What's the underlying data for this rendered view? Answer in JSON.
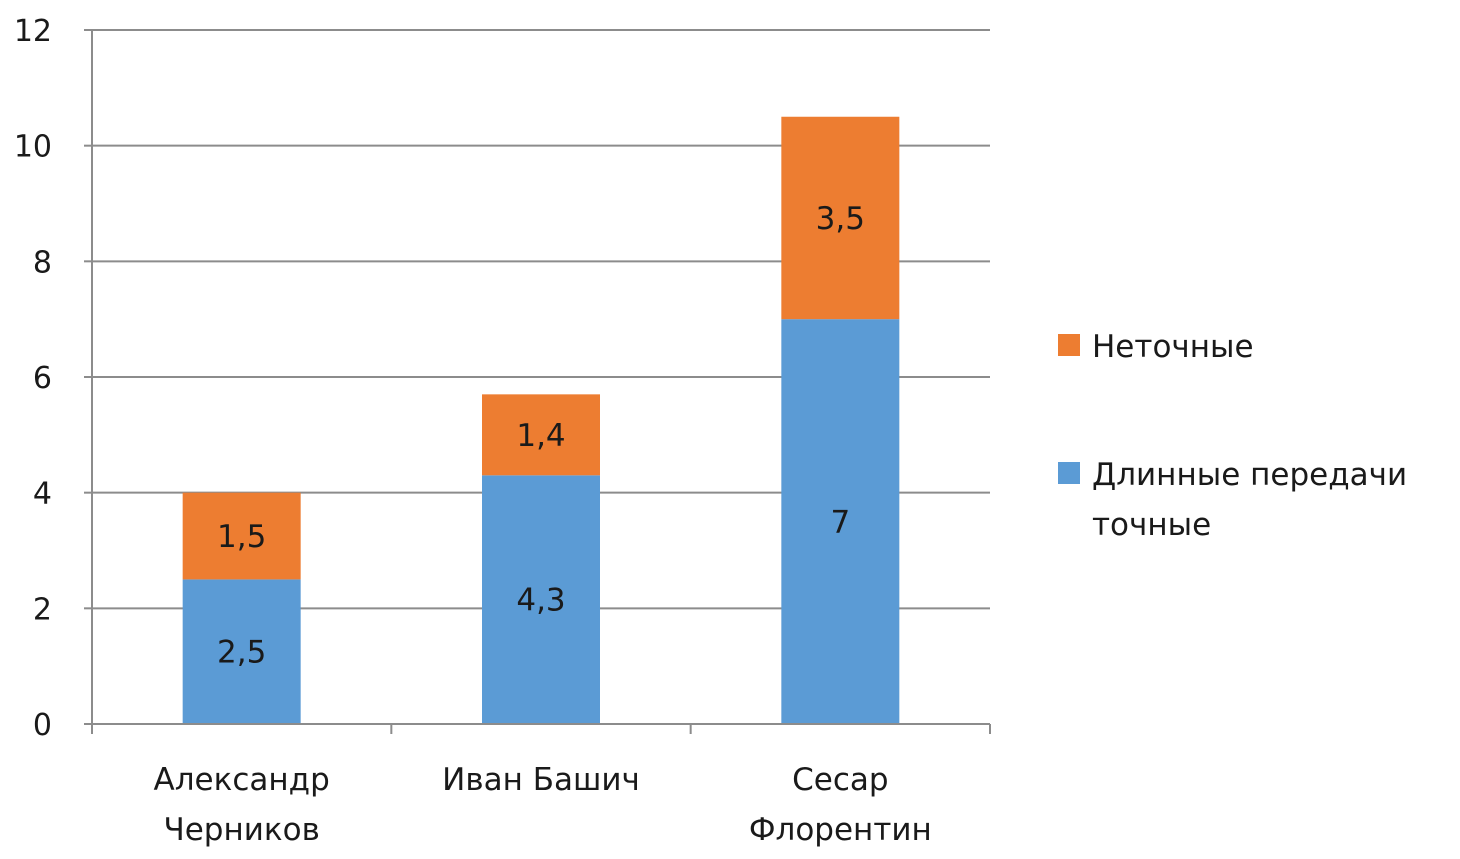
{
  "chart_data": {
    "type": "bar",
    "stacked": true,
    "categories": [
      [
        "Александр",
        "Черников"
      ],
      [
        "Иван Башич"
      ],
      [
        "Сесар",
        "Флорентин"
      ]
    ],
    "series": [
      {
        "name_lines": [
          "Длинные передачи",
          "точные"
        ],
        "values": [
          2.5,
          4.3,
          7
        ],
        "labels": [
          "2,5",
          "4,3",
          "7"
        ],
        "color": "#5b9bd5"
      },
      {
        "name_lines": [
          "Неточные"
        ],
        "values": [
          1.5,
          1.4,
          3.5
        ],
        "labels": [
          "1,5",
          "1,4",
          "3,5"
        ],
        "color": "#ed7d31"
      }
    ],
    "ylim": [
      0,
      12
    ],
    "yticks": [
      0,
      2,
      4,
      6,
      8,
      10,
      12
    ],
    "grid": true,
    "legend_position": "right"
  }
}
